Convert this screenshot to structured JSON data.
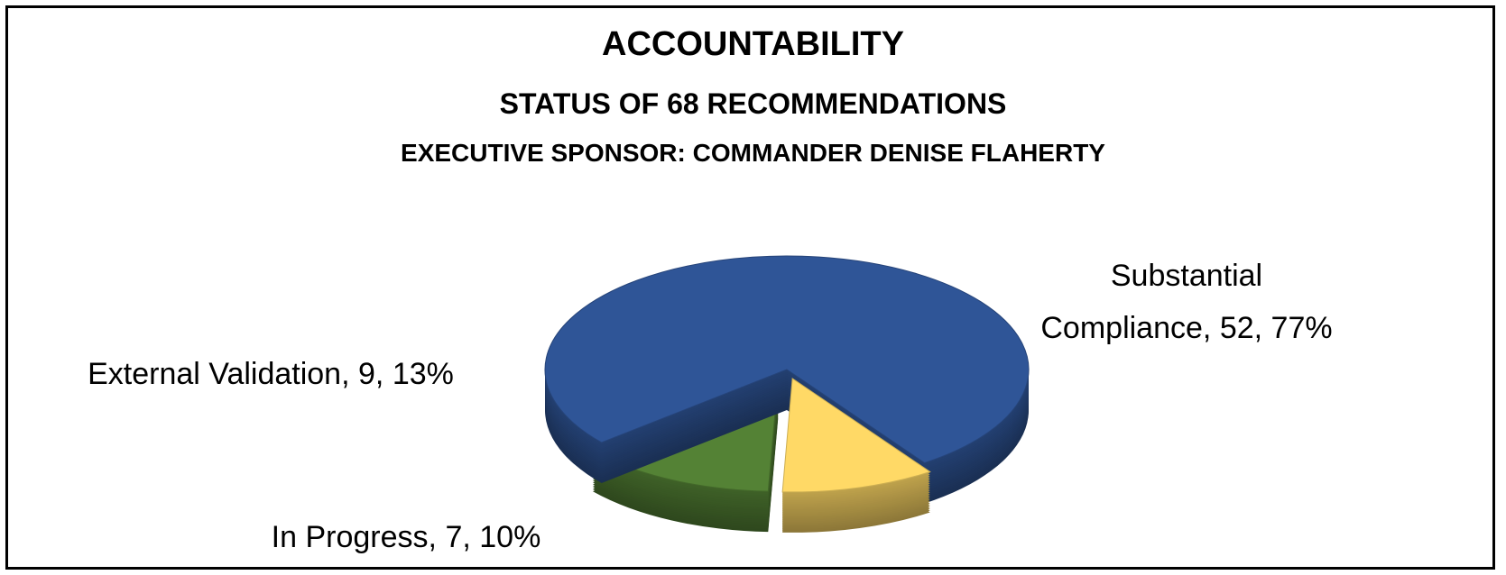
{
  "chart_data": {
    "type": "pie",
    "title": "ACCOUNTABILITY",
    "subtitle": "STATUS OF 68 RECOMMENDATIONS",
    "subtitle2": "EXECUTIVE SPONSOR: COMMANDER DENISE FLAHERTY",
    "categories": [
      "Substantial Compliance",
      "In Progress",
      "External Validation"
    ],
    "values": [
      52,
      7,
      9
    ],
    "percents": [
      77,
      10,
      13
    ],
    "percent_labels": [
      "77%",
      "10%",
      "13%"
    ],
    "colors": [
      "#2f5597",
      "#ffd966",
      "#548235"
    ]
  }
}
